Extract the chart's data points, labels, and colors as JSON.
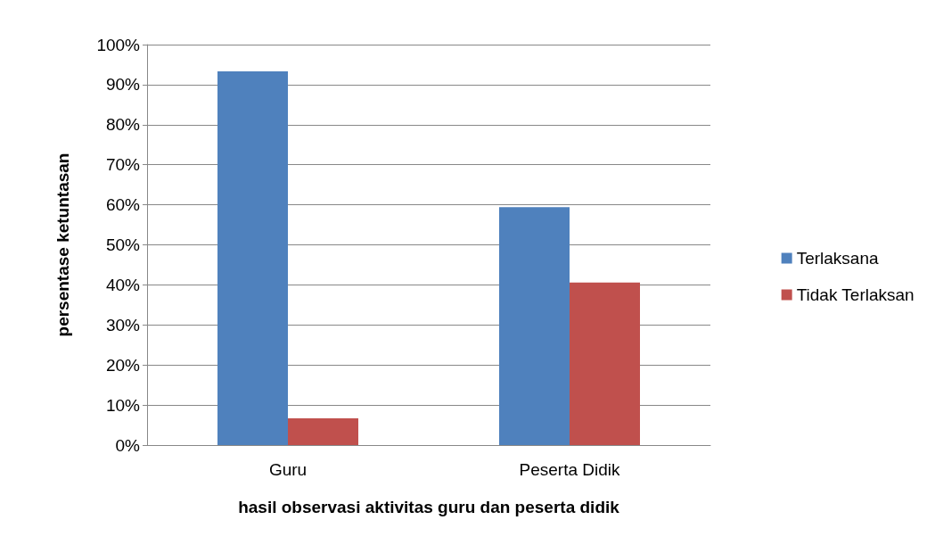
{
  "chart_data": {
    "type": "bar",
    "xlabel": "hasil observasi aktivitas guru dan peserta didik",
    "ylabel": "persentase ketuntasan",
    "categories": [
      "Guru",
      "Peserta Didik"
    ],
    "series": [
      {
        "name": "Terlaksana",
        "color": "#4f81bd",
        "values": [
          93.3,
          59.4
        ]
      },
      {
        "name": "Tidak Terlaksan",
        "color": "#c0504d",
        "values": [
          6.7,
          40.6
        ]
      }
    ],
    "ylim": [
      0,
      100
    ],
    "yticks": [
      {
        "value": 0,
        "label": "0%"
      },
      {
        "value": 10,
        "label": "10%"
      },
      {
        "value": 20,
        "label": "20%"
      },
      {
        "value": 30,
        "label": "30%"
      },
      {
        "value": 40,
        "label": "40%"
      },
      {
        "value": 50,
        "label": "50%"
      },
      {
        "value": 60,
        "label": "60%"
      },
      {
        "value": 70,
        "label": "70%"
      },
      {
        "value": 80,
        "label": "80%"
      },
      {
        "value": 90,
        "label": "90%"
      },
      {
        "value": 100,
        "label": "100%"
      }
    ],
    "grid": "y",
    "legend": "right"
  }
}
